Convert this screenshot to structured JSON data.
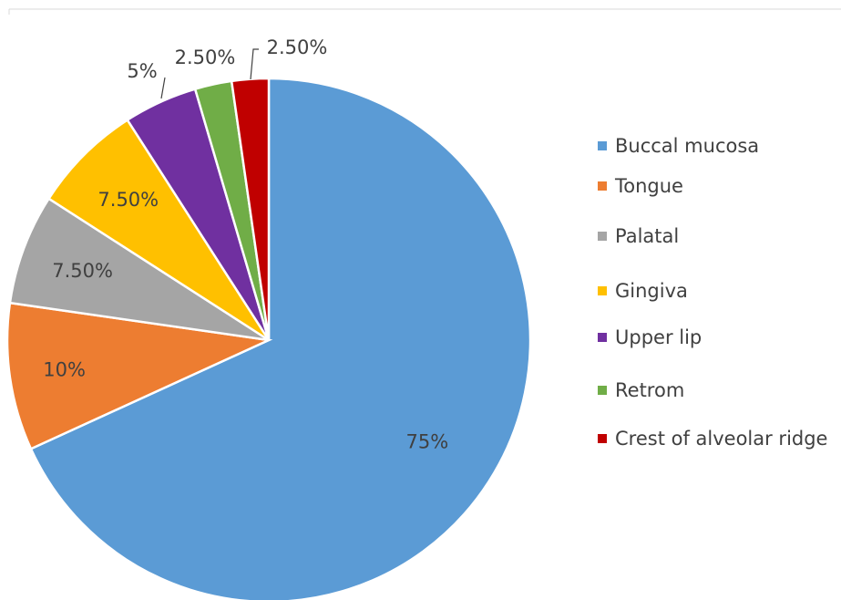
{
  "chart_data": {
    "type": "pie",
    "categories": [
      "Buccal mucosa",
      "Tongue",
      "Palatal",
      "Gingiva",
      "Upper lip",
      "Retrom",
      "Crest of alveolar ridge"
    ],
    "values": [
      75,
      10,
      7.5,
      7.5,
      5,
      2.5,
      2.5
    ],
    "value_labels": [
      "75%",
      "10%",
      "7.50%",
      "7.50%",
      "5%",
      "2.50%",
      "2.50%"
    ],
    "colors": [
      "#5b9bd5",
      "#ed7d31",
      "#a5a5a5",
      "#ffc000",
      "#7030a0",
      "#70ad47",
      "#c00000"
    ],
    "title": "",
    "legend_position": "right",
    "start_angle": "12 o'clock",
    "direction": "clockwise"
  }
}
